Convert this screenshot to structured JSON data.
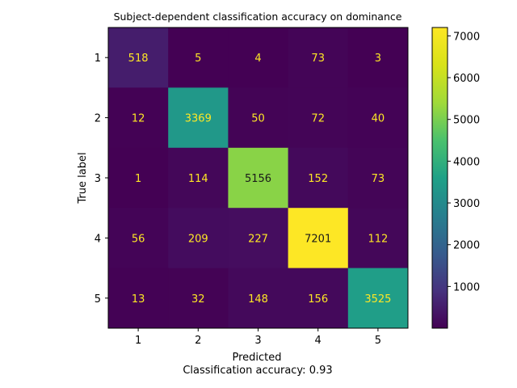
{
  "chart_data": {
    "type": "heatmap",
    "title": "Subject-dependent classification accuracy on dominance",
    "xlabel": "Predicted",
    "ylabel": "True label",
    "footer": "Classification accuracy: 0.93",
    "x_categories": [
      "1",
      "2",
      "3",
      "4",
      "5"
    ],
    "y_categories": [
      "1",
      "2",
      "3",
      "4",
      "5"
    ],
    "values": [
      [
        518,
        5,
        4,
        73,
        3
      ],
      [
        12,
        3369,
        50,
        72,
        40
      ],
      [
        1,
        114,
        5156,
        152,
        73
      ],
      [
        56,
        209,
        227,
        7201,
        112
      ],
      [
        13,
        32,
        148,
        156,
        3525
      ]
    ],
    "colorscale": "viridis",
    "vmin": 1,
    "vmax": 7201,
    "colorbar_ticks": [
      1000,
      2000,
      3000,
      4000,
      5000,
      6000,
      7000
    ],
    "colorbar_tick_labels": [
      "1000",
      "2000",
      "3000",
      "4000",
      "5000",
      "6000",
      "7000"
    ],
    "text_colors": {
      "dark_cell": "#fde725",
      "light_cell": "#1a1a1a"
    }
  }
}
